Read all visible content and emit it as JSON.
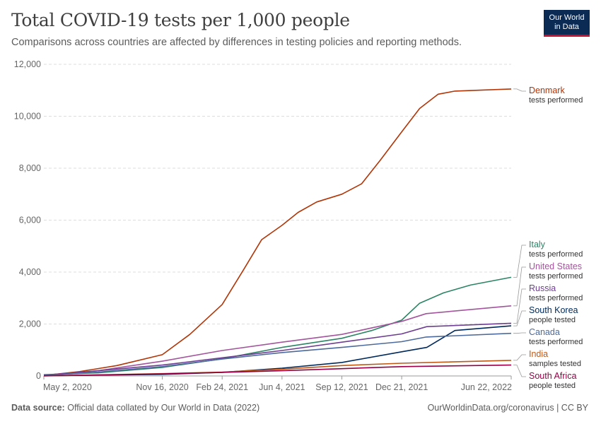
{
  "header": {
    "title": "Total COVID-19 tests per 1,000 people",
    "subtitle": "Comparisons across countries are affected by differences in testing policies and reporting methods.",
    "logo_line1": "Our World",
    "logo_line2": "in Data"
  },
  "footer": {
    "source_label": "Data source:",
    "source_text": "Official data collated by Our World in Data (2022)",
    "link": "OurWorldinData.org/coronavirus",
    "license": "| CC BY"
  },
  "chart_data": {
    "type": "line",
    "title": "Total COVID-19 tests per 1,000 people",
    "ylim": [
      0,
      12000
    ],
    "y_ticks": [
      0,
      2000,
      4000,
      6000,
      8000,
      10000,
      12000
    ],
    "y_tick_labels": [
      "0",
      "2,000",
      "4,000",
      "6,000",
      "8,000",
      "10,000",
      "12,000"
    ],
    "x_ticks": [
      "2020-05-02",
      "2020-11-16",
      "2021-02-24",
      "2021-06-04",
      "2021-09-12",
      "2021-12-21",
      "2022-06-22"
    ],
    "x_tick_labels": [
      "May 2, 2020",
      "Nov 16, 2020",
      "Feb 24, 2021",
      "Jun 4, 2021",
      "Sep 12, 2021",
      "Dec 21, 2021",
      "Jun 22, 2022"
    ],
    "x_range": [
      "2020-05-02",
      "2022-06-22"
    ],
    "grid": "horizontal dashed",
    "series": [
      {
        "name": "Denmark",
        "unit": "tests performed",
        "color": "#b13507",
        "x": [
          "2020-05-02",
          "2020-07-01",
          "2020-09-01",
          "2020-11-16",
          "2021-01-01",
          "2021-02-24",
          "2021-04-01",
          "2021-05-01",
          "2021-06-04",
          "2021-07-01",
          "2021-08-01",
          "2021-09-12",
          "2021-10-15",
          "2021-11-15",
          "2021-12-21",
          "2022-01-20",
          "2022-02-20",
          "2022-03-20",
          "2022-06-22"
        ],
        "y": [
          20,
          170,
          400,
          820,
          1600,
          2750,
          4100,
          5250,
          5800,
          6300,
          6700,
          7000,
          7400,
          8300,
          9400,
          10300,
          10850,
          10970,
          11050
        ]
      },
      {
        "name": "Italy",
        "unit": "tests performed",
        "color": "#2c8465",
        "x": [
          "2020-05-02",
          "2020-08-01",
          "2020-11-16",
          "2021-02-24",
          "2021-06-04",
          "2021-09-12",
          "2021-11-01",
          "2021-12-21",
          "2022-01-20",
          "2022-03-01",
          "2022-04-15",
          "2022-06-22"
        ],
        "y": [
          50,
          120,
          330,
          660,
          1100,
          1450,
          1750,
          2150,
          2800,
          3200,
          3500,
          3800
        ]
      },
      {
        "name": "United States",
        "unit": "tests performed",
        "color": "#a2559c",
        "x": [
          "2020-05-02",
          "2020-08-01",
          "2020-11-16",
          "2021-02-24",
          "2021-06-04",
          "2021-09-12",
          "2021-12-21",
          "2022-01-31",
          "2022-06-22"
        ],
        "y": [
          20,
          200,
          570,
          980,
          1300,
          1600,
          2100,
          2400,
          2700
        ]
      },
      {
        "name": "Russia",
        "unit": "tests performed",
        "color": "#6d3e91",
        "x": [
          "2020-05-02",
          "2020-08-01",
          "2020-11-16",
          "2021-02-24",
          "2021-06-04",
          "2021-09-12",
          "2021-12-21",
          "2022-02-01",
          "2022-06-22"
        ],
        "y": [
          30,
          200,
          420,
          700,
          980,
          1300,
          1620,
          1900,
          2030
        ]
      },
      {
        "name": "South Korea",
        "unit": "people tested",
        "color": "#00295b",
        "x": [
          "2020-05-02",
          "2020-11-16",
          "2021-02-24",
          "2021-06-04",
          "2021-09-12",
          "2021-12-21",
          "2022-02-01",
          "2022-03-20",
          "2022-06-22"
        ],
        "y": [
          12,
          60,
          140,
          300,
          520,
          930,
          1100,
          1750,
          1930
        ]
      },
      {
        "name": "Canada",
        "unit": "tests performed",
        "color": "#4c6a9c",
        "x": [
          "2020-05-02",
          "2020-08-01",
          "2020-11-16",
          "2021-02-24",
          "2021-06-04",
          "2021-09-12",
          "2021-12-21",
          "2022-01-31",
          "2022-06-22"
        ],
        "y": [
          20,
          150,
          360,
          650,
          900,
          1100,
          1320,
          1500,
          1640
        ]
      },
      {
        "name": "India",
        "unit": "samples tested",
        "color": "#be5915",
        "x": [
          "2020-05-02",
          "2020-11-16",
          "2021-02-24",
          "2021-06-04",
          "2021-09-12",
          "2021-12-21",
          "2022-06-22"
        ],
        "y": [
          2,
          90,
          150,
          260,
          400,
          490,
          600
        ]
      },
      {
        "name": "South Africa",
        "unit": "people tested",
        "color": "#970046",
        "x": [
          "2020-05-02",
          "2020-11-16",
          "2021-02-24",
          "2021-06-04",
          "2021-09-12",
          "2021-12-21",
          "2022-06-22"
        ],
        "y": [
          5,
          80,
          140,
          200,
          280,
          360,
          420
        ]
      }
    ]
  }
}
